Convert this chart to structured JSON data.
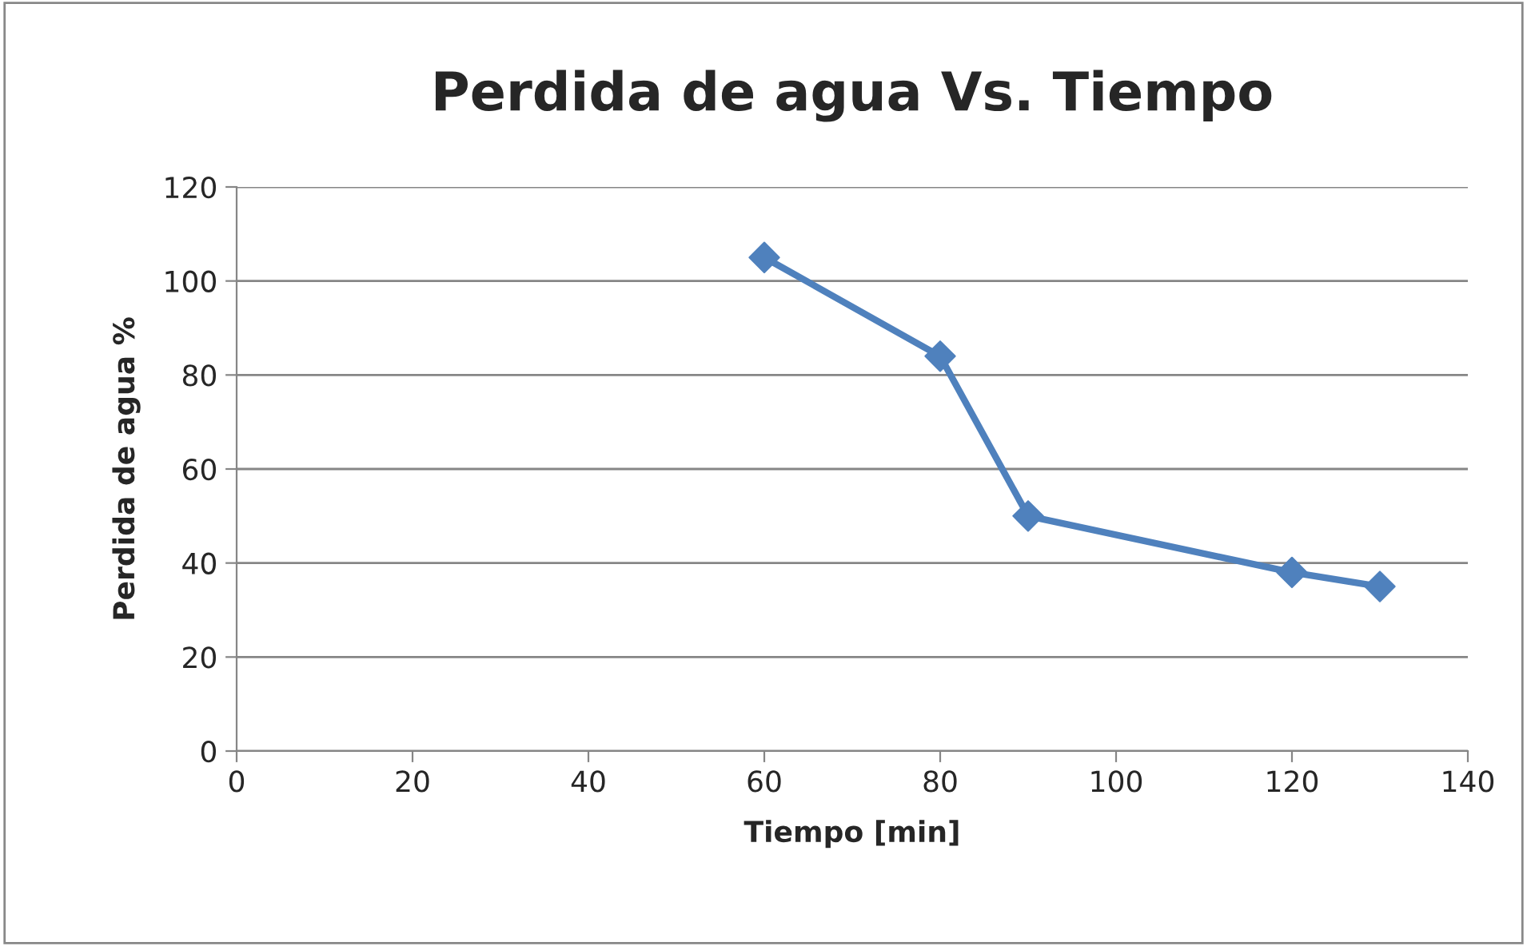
{
  "chart_data": {
    "type": "line",
    "title": "Perdida de agua Vs. Tiempo",
    "xlabel": "Tiempo [min]",
    "ylabel": "Perdida de agua %",
    "x": [
      60,
      80,
      90,
      120,
      130
    ],
    "series": [
      {
        "color": "#4f81bd",
        "values": [
          105,
          84,
          50,
          38,
          35
        ]
      }
    ],
    "xlim": [
      0,
      140
    ],
    "xticks": [
      0,
      20,
      40,
      60,
      80,
      100,
      120,
      140
    ],
    "ylim": [
      0,
      120
    ],
    "yticks": [
      0,
      20,
      40,
      60,
      80,
      100,
      120
    ],
    "grid": "y",
    "legend": false,
    "marker": "diamond",
    "line_style": "solid"
  }
}
